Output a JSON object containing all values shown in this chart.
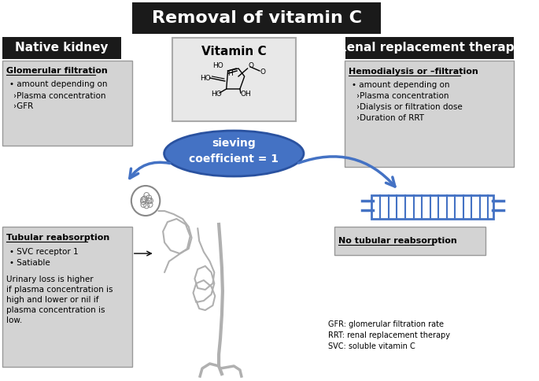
{
  "title": "Removal of vitamin C",
  "title_bg": "#1a1a1a",
  "title_color": "#ffffff",
  "left_header": "Native kidney",
  "right_header": "Renal replacement therapy",
  "left_header_bg": "#1a1a1a",
  "right_header_bg": "#1a1a1a",
  "header_text_color": "#ffffff",
  "box_bg": "#d3d3d3",
  "vitc_box_label": "Vitamin C",
  "sieving_label": "sieving\ncoefficient = 1",
  "sieving_bg": "#4472c4",
  "sieving_text_color": "#ffffff",
  "glomerular_title": "Glomerular filtration",
  "glomerular_lines": [
    "amount depending on",
    "›Plasma concentration",
    "›GFR"
  ],
  "hemodialysis_title": "Hemodialysis or –filtration",
  "hemodialysis_lines": [
    "amount depending on",
    "›Plasma concentration",
    "›Dialysis or filtration dose",
    "›Duration of RRT"
  ],
  "tubular_title": "Tubular reabsorption",
  "tubular_bullet1": "SVC receptor 1",
  "tubular_bullet2": "Satiable",
  "tubular_para": "Urinary loss is higher\nif plasma concentration is\nhigh and lower or nil if\nplasma concentration is\nlow.",
  "no_tubular": "No tubular reabsorption",
  "footnote": "GFR: glomerular filtration rate\nRRT: renal replacement therapy\nSVC: soluble vitamin C",
  "arrow_color": "#4472c4",
  "filter_color": "#4472c4",
  "filter_bg": "#ffffff"
}
